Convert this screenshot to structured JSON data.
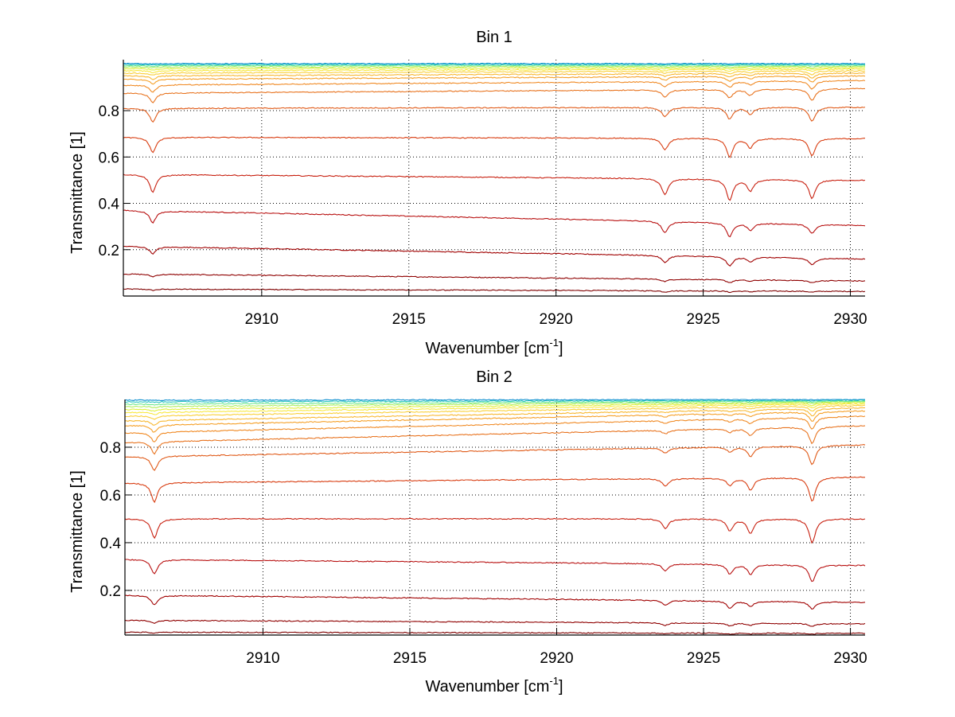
{
  "chart_data": [
    {
      "type": "line",
      "title": "Bin 1",
      "xlabel": "Wavenumber [cm",
      "xlabel_sup": "-1",
      "xlabel_end": "]",
      "ylabel": "Transmittance [1]",
      "xlim": [
        2905.3,
        2930.5
      ],
      "ylim": [
        0.0,
        1.02
      ],
      "xticks": [
        2910,
        2915,
        2920,
        2925,
        2930
      ],
      "xtick_labels": [
        "2910",
        "2915",
        "2920",
        "2925",
        "2930"
      ],
      "yticks": [
        0.2,
        0.4,
        0.6,
        0.8
      ],
      "ytick_labels": [
        "0.2",
        "0.4",
        "0.6",
        "0.8"
      ],
      "grid": true,
      "absorption_lines": [
        2906.3,
        2923.7,
        2925.9,
        2926.6,
        2928.7
      ],
      "series": [
        {
          "baseline": [
            0.03,
            0.02
          ],
          "dips": [
            0.005,
            0.005,
            0.005,
            0.003,
            0.004
          ],
          "color": "#7f0000"
        },
        {
          "baseline": [
            0.095,
            0.065
          ],
          "dips": [
            0.01,
            0.01,
            0.012,
            0.006,
            0.01
          ],
          "color": "#8f0000"
        },
        {
          "baseline": [
            0.215,
            0.16
          ],
          "dips": [
            0.03,
            0.03,
            0.04,
            0.02,
            0.03
          ],
          "color": "#a00000"
        },
        {
          "baseline": [
            0.37,
            0.305
          ],
          "dips": [
            0.05,
            0.05,
            0.06,
            0.03,
            0.04
          ],
          "color": "#b81010"
        },
        {
          "baseline": [
            0.525,
            0.5
          ],
          "dips": [
            0.075,
            0.07,
            0.09,
            0.05,
            0.08
          ],
          "color": "#c82010"
        },
        {
          "baseline": [
            0.685,
            0.68
          ],
          "dips": [
            0.065,
            0.05,
            0.08,
            0.04,
            0.075
          ],
          "color": "#d83c10"
        },
        {
          "baseline": [
            0.81,
            0.815
          ],
          "dips": [
            0.06,
            0.04,
            0.05,
            0.03,
            0.06
          ],
          "color": "#e05a18"
        },
        {
          "baseline": [
            0.875,
            0.895
          ],
          "dips": [
            0.04,
            0.03,
            0.035,
            0.025,
            0.05
          ],
          "color": "#e87420"
        },
        {
          "baseline": [
            0.91,
            0.93
          ],
          "dips": [
            0.03,
            0.02,
            0.025,
            0.015,
            0.035
          ],
          "color": "#f08a24"
        },
        {
          "baseline": [
            0.935,
            0.95
          ],
          "dips": [
            0.02,
            0.015,
            0.02,
            0.01,
            0.025
          ],
          "color": "#f5a028"
        },
        {
          "baseline": [
            0.95,
            0.962
          ],
          "dips": [
            0.015,
            0.01,
            0.015,
            0.008,
            0.02
          ],
          "color": "#f8b830"
        },
        {
          "baseline": [
            0.962,
            0.972
          ],
          "dips": [
            0.01,
            0.008,
            0.01,
            0.006,
            0.015
          ],
          "color": "#fad038"
        },
        {
          "baseline": [
            0.972,
            0.98
          ],
          "dips": [
            0.008,
            0.006,
            0.008,
            0.004,
            0.01
          ],
          "color": "#f8e840"
        },
        {
          "baseline": [
            0.981,
            0.986
          ],
          "dips": [
            0.006,
            0.004,
            0.006,
            0.003,
            0.008
          ],
          "color": "#e0f040"
        },
        {
          "baseline": [
            0.988,
            0.991
          ],
          "dips": [
            0.004,
            0.003,
            0.004,
            0.002,
            0.006
          ],
          "color": "#b0f060"
        },
        {
          "baseline": [
            0.994,
            0.996
          ],
          "dips": [
            0.003,
            0.002,
            0.003,
            0.001,
            0.004
          ],
          "color": "#70e890"
        },
        {
          "baseline": [
            0.999,
            1.0
          ],
          "dips": [
            0.002,
            0.001,
            0.002,
            0.001,
            0.002
          ],
          "color": "#30c8c0"
        },
        {
          "baseline": [
            1.003,
            1.003
          ],
          "dips": [
            0.001,
            0.001,
            0.001,
            0.0,
            0.001
          ],
          "color": "#1090d0"
        }
      ]
    },
    {
      "type": "line",
      "title": "Bin 2",
      "xlabel": "Wavenumber [cm",
      "xlabel_sup": "-1",
      "xlabel_end": "]",
      "ylabel": "Transmittance [1]",
      "xlim": [
        2905.3,
        2930.5
      ],
      "ylim": [
        0.013,
        1.0
      ],
      "xticks": [
        2910,
        2915,
        2920,
        2925,
        2930
      ],
      "xtick_labels": [
        "2910",
        "2915",
        "2920",
        "2925",
        "2930"
      ],
      "yticks": [
        0.2,
        0.4,
        0.6,
        0.8
      ],
      "ytick_labels": [
        "0.2",
        "0.4",
        "0.6",
        "0.8"
      ],
      "grid": true,
      "absorption_lines": [
        2906.3,
        2923.7,
        2925.9,
        2926.6,
        2928.7
      ],
      "series": [
        {
          "baseline": [
            0.025,
            0.02
          ],
          "dips": [
            0.004,
            0.004,
            0.004,
            0.003,
            0.004
          ],
          "color": "#7f0000"
        },
        {
          "baseline": [
            0.075,
            0.06
          ],
          "dips": [
            0.012,
            0.01,
            0.012,
            0.008,
            0.012
          ],
          "color": "#8f0000"
        },
        {
          "baseline": [
            0.18,
            0.15
          ],
          "dips": [
            0.04,
            0.02,
            0.03,
            0.02,
            0.03
          ],
          "color": "#a00000"
        },
        {
          "baseline": [
            0.33,
            0.305
          ],
          "dips": [
            0.06,
            0.03,
            0.04,
            0.04,
            0.07
          ],
          "color": "#b81010"
        },
        {
          "baseline": [
            0.5,
            0.5
          ],
          "dips": [
            0.08,
            0.04,
            0.05,
            0.06,
            0.1
          ],
          "color": "#c82010"
        },
        {
          "baseline": [
            0.65,
            0.675
          ],
          "dips": [
            0.08,
            0.03,
            0.03,
            0.05,
            0.1
          ],
          "color": "#d83c10"
        },
        {
          "baseline": [
            0.76,
            0.81
          ],
          "dips": [
            0.06,
            0.02,
            0.02,
            0.04,
            0.08
          ],
          "color": "#e05a18"
        },
        {
          "baseline": [
            0.82,
            0.89
          ],
          "dips": [
            0.05,
            0.015,
            0.015,
            0.03,
            0.07
          ],
          "color": "#e87420"
        },
        {
          "baseline": [
            0.86,
            0.93
          ],
          "dips": [
            0.04,
            0.01,
            0.01,
            0.02,
            0.05
          ],
          "color": "#f08a24"
        },
        {
          "baseline": [
            0.89,
            0.952
          ],
          "dips": [
            0.03,
            0.008,
            0.008,
            0.015,
            0.04
          ],
          "color": "#f5a028"
        },
        {
          "baseline": [
            0.91,
            0.965
          ],
          "dips": [
            0.02,
            0.006,
            0.006,
            0.01,
            0.03
          ],
          "color": "#f8b830"
        },
        {
          "baseline": [
            0.93,
            0.975
          ],
          "dips": [
            0.015,
            0.004,
            0.004,
            0.008,
            0.02
          ],
          "color": "#fad038"
        },
        {
          "baseline": [
            0.945,
            0.982
          ],
          "dips": [
            0.01,
            0.003,
            0.003,
            0.006,
            0.015
          ],
          "color": "#f8e840"
        },
        {
          "baseline": [
            0.958,
            0.987
          ],
          "dips": [
            0.008,
            0.002,
            0.002,
            0.004,
            0.01
          ],
          "color": "#e0f040"
        },
        {
          "baseline": [
            0.97,
            0.991
          ],
          "dips": [
            0.005,
            0.002,
            0.002,
            0.003,
            0.007
          ],
          "color": "#b0f060"
        },
        {
          "baseline": [
            0.98,
            0.994
          ],
          "dips": [
            0.003,
            0.001,
            0.001,
            0.002,
            0.005
          ],
          "color": "#70e890"
        },
        {
          "baseline": [
            0.99,
            0.997
          ],
          "dips": [
            0.002,
            0.001,
            0.001,
            0.001,
            0.003
          ],
          "color": "#30c8c0"
        },
        {
          "baseline": [
            0.997,
            1.0
          ],
          "dips": [
            0.001,
            0.0,
            0.0,
            0.0,
            0.001
          ],
          "color": "#1090d0"
        }
      ]
    }
  ]
}
